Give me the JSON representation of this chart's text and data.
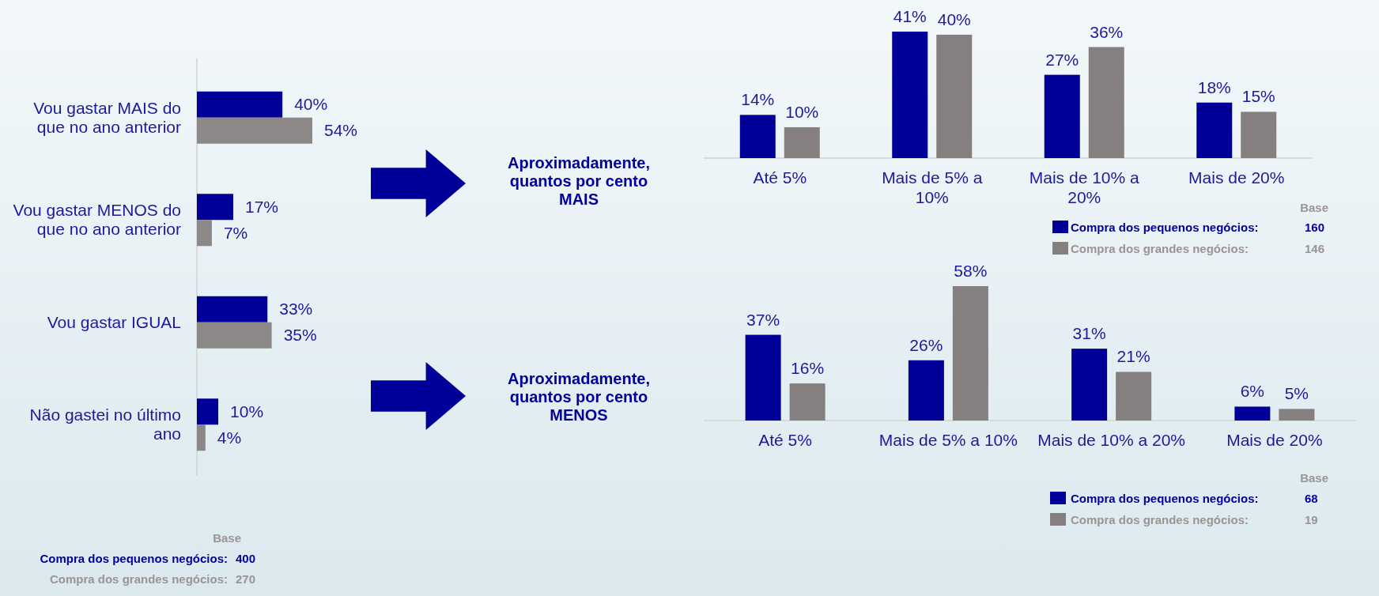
{
  "chart_data": [
    {
      "type": "bar",
      "orientation": "horizontal",
      "categories": [
        "Vou gastar MAIS do que no ano anterior",
        "Vou gastar MENOS do que no ano anterior",
        "Vou gastar IGUAL",
        "Não gastei no último ano"
      ],
      "series": [
        {
          "name": "Compra dos pequenos negócios:",
          "color": "#000099",
          "values": [
            40,
            17,
            33,
            10
          ],
          "value_labels": [
            "40%",
            "17%",
            "33%",
            "10%"
          ]
        },
        {
          "name": "Compra dos grandes negócios:",
          "color": "#8c8888",
          "values": [
            54,
            7,
            35,
            4
          ],
          "value_labels": [
            "54%",
            "7%",
            "35%",
            "4%"
          ]
        }
      ],
      "legend": "bottom",
      "legend_title": "Base",
      "annotations": [
        "400",
        "270"
      ]
    },
    {
      "type": "bar",
      "title": "Aproximadamente, quantos por cento MAIS",
      "categories": [
        "Até 5%",
        "Mais de 5% a 10%",
        "Mais de 10% a 20%",
        "Mais de 20%"
      ],
      "series": [
        {
          "name": "Compra dos pequenos negócios:",
          "color": "#000099",
          "values": [
            14,
            41,
            27,
            18
          ],
          "value_labels": [
            "14%",
            "41%",
            "27%",
            "18%"
          ]
        },
        {
          "name": "Compra dos grandes negócios:",
          "color": "#857f7f",
          "values": [
            10,
            40,
            36,
            15
          ],
          "value_labels": [
            "10%",
            "40%",
            "36%",
            "15%"
          ]
        }
      ],
      "legend": "bottom right",
      "legend_title": "Base",
      "annotations": [
        "160",
        "146"
      ]
    },
    {
      "type": "bar",
      "title": "Aproximadamente, quantos por cento MENOS",
      "categories": [
        "Até 5%",
        "Mais de 5% a 10%",
        "Mais de 10% a 20%",
        "Mais de 20%"
      ],
      "series": [
        {
          "name": "Compra dos pequenos negócios:",
          "color": "#000099",
          "values": [
            37,
            26,
            31,
            6
          ],
          "value_labels": [
            "37%",
            "26%",
            "31%",
            "6%"
          ]
        },
        {
          "name": "Compra dos grandes negócios:",
          "color": "#857f7f",
          "values": [
            16,
            58,
            21,
            5
          ],
          "value_labels": [
            "16%",
            "58%",
            "21%",
            "5%"
          ]
        }
      ],
      "legend": "bottom right",
      "legend_title": "Base",
      "annotations": [
        "68",
        "19"
      ]
    }
  ]
}
